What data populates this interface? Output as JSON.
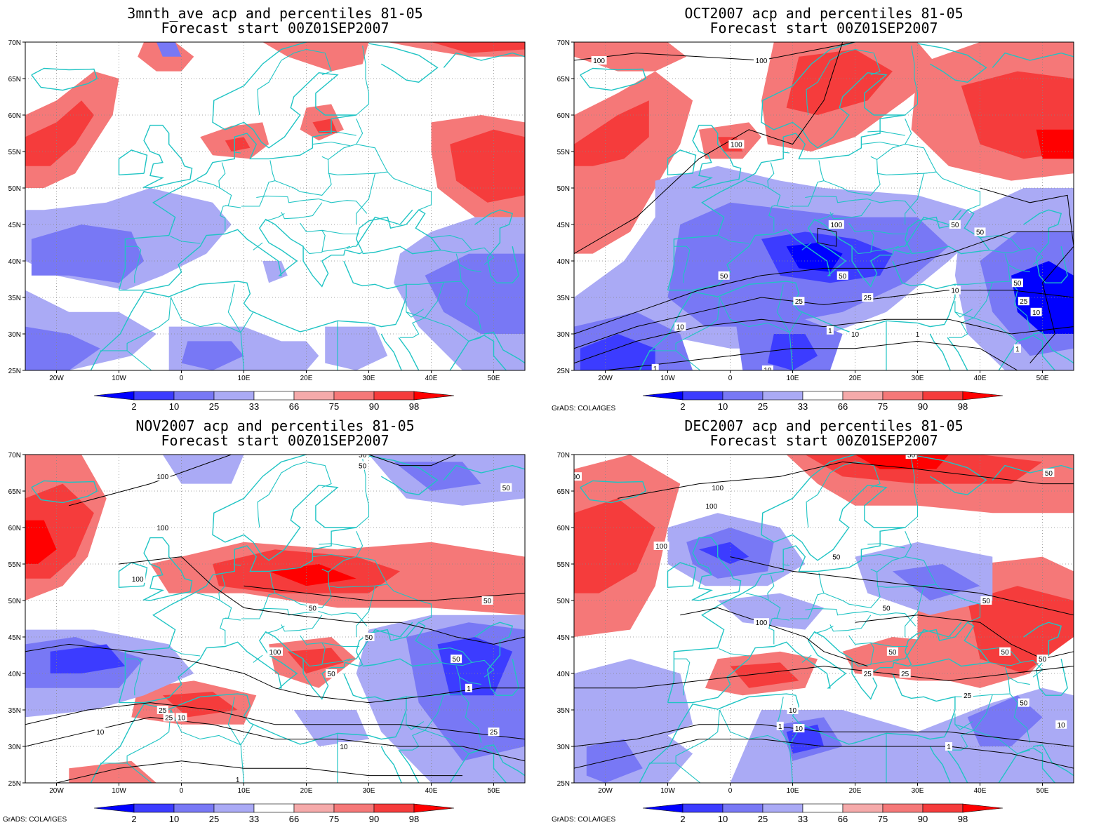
{
  "figure": {
    "panels": [
      {
        "title1": "3mnth_ave acp and percentiles 81-05",
        "title2": "Forecast start 00Z01SEP2007",
        "contour_labels": [],
        "show_credit": false
      },
      {
        "title1": "OCT2007 acp and percentiles 81-05",
        "title2": "Forecast start 00Z01SEP2007",
        "contour_labels": [
          "100",
          "100",
          "100",
          "100",
          "50",
          "50",
          "50",
          "50",
          "50",
          "25",
          "25",
          "25",
          "10",
          "10",
          "10",
          "10",
          "1",
          "1",
          "1",
          "1",
          "10"
        ],
        "show_credit": true
      },
      {
        "title1": "NOV2007 acp and percentiles 81-05",
        "title2": "Forecast start 00Z01SEP2007",
        "contour_labels": [
          "100",
          "100",
          "100",
          "100",
          "50",
          "50",
          "50",
          "50",
          "50",
          "50",
          "50",
          "25",
          "25",
          "10",
          "10",
          "1",
          "1",
          "10",
          "50",
          "25"
        ],
        "show_credit": true
      },
      {
        "title1": "DEC2007 acp and percentiles 81-05",
        "title2": "Forecast start 00Z01SEP2007",
        "contour_labels": [
          "100",
          "100",
          "100",
          "100",
          "100",
          "50",
          "50",
          "50",
          "50",
          "50",
          "50",
          "50",
          "50",
          "25",
          "25",
          "10",
          "10",
          "1",
          "1",
          "10",
          "25",
          "50"
        ],
        "show_credit": true
      }
    ],
    "lat_ticks": [
      "70N",
      "65N",
      "60N",
      "55N",
      "50N",
      "45N",
      "40N",
      "35N",
      "30N",
      "25N"
    ],
    "lon_ticks": [
      "20W",
      "10W",
      "0",
      "10E",
      "20E",
      "30E",
      "40E",
      "50E"
    ],
    "colorbar": {
      "labels": [
        "2",
        "10",
        "25",
        "33",
        "66",
        "75",
        "90",
        "98"
      ],
      "colors": [
        "#0000ff",
        "#3c3cff",
        "#7878f5",
        "#aaaaf5",
        "#ffffff",
        "#f5aaaa",
        "#f57878",
        "#f53c3c",
        "#ff0000"
      ]
    },
    "credit": "GrADS: COLA/IGES",
    "colors": {
      "coast": "#20c4c4",
      "grid": "#888888",
      "contour": "#000000"
    }
  }
}
